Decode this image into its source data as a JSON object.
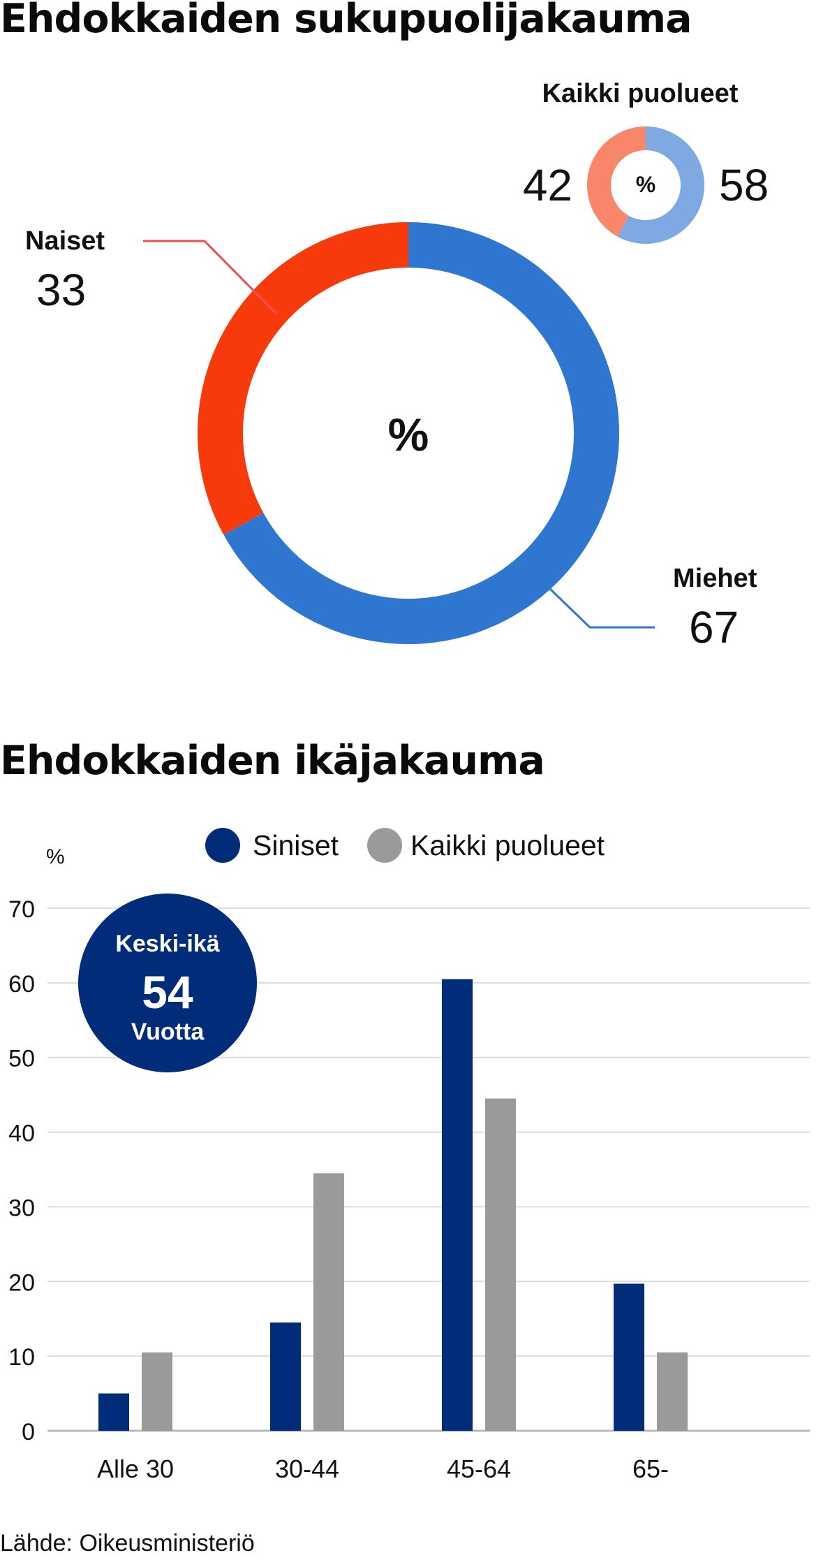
{
  "gender_section": {
    "title": "Ehdokkaiden sukupuolijakauma"
  },
  "age_section": {
    "title": "Ehdokkaiden ikäjakauma"
  },
  "footer": {
    "source": "Lähde: Oikeusministeriö"
  },
  "colors": {
    "men": "#2e76d0",
    "women": "#f73a0c",
    "all_men": "#7fa9e3",
    "all_women": "#f8866a",
    "siniset": "#002c7a",
    "kaikki": "#9a9a9a",
    "avg_badge": "#002c7a"
  },
  "chart_data": [
    {
      "type": "pie",
      "center_label": "%",
      "slices": [
        {
          "label": "Miehet",
          "value": 67
        },
        {
          "label": "Naiset",
          "value": 33
        }
      ]
    },
    {
      "type": "pie",
      "title": "Kaikki puolueet",
      "center_label": "%",
      "slices": [
        {
          "label": "",
          "value": 58
        },
        {
          "label": "",
          "value": 42
        }
      ]
    },
    {
      "type": "bar",
      "categories": [
        "Alle 30",
        "30-44",
        "45-64",
        "65-"
      ],
      "series": [
        {
          "name": "Siniset",
          "values": [
            5,
            14.5,
            60.5,
            19.7
          ]
        },
        {
          "name": "Kaikki puolueet",
          "values": [
            10.5,
            34.5,
            44.5,
            10.5
          ]
        }
      ],
      "ylabel": "%",
      "ylim": [
        0,
        70
      ],
      "yticks": [
        0,
        10,
        20,
        30,
        40,
        50,
        60,
        70
      ],
      "grid": true,
      "legend": "top-center",
      "annotation": {
        "title": "Keski-ikä",
        "value": "54",
        "unit": "Vuotta"
      }
    }
  ]
}
